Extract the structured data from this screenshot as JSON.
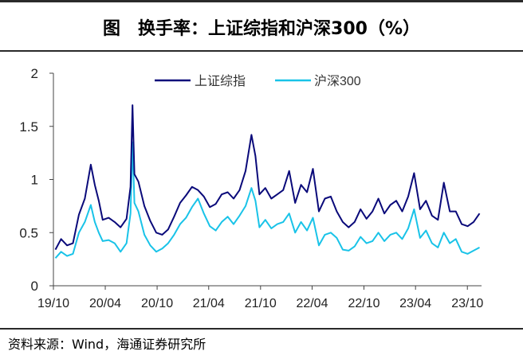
{
  "header": {
    "figure_label": "图",
    "title": "换手率：上证综指和沪深300（%）"
  },
  "source": "资料来源：Wind，海通证券研究所",
  "colors": {
    "shanghai": "#0a0a7a",
    "hs300": "#19c3e8",
    "axis": "#444444",
    "rule": "#2a2a2a"
  },
  "chart_data": {
    "type": "line",
    "title": "换手率：上证综指和沪深300（%）",
    "xlabel": "",
    "ylabel": "",
    "ylim": [
      0,
      2
    ],
    "yticks": [
      "0",
      "0.5",
      "1",
      "1.5",
      "2"
    ],
    "xticks": [
      "19/10",
      "20/04",
      "20/10",
      "21/04",
      "21/10",
      "22/04",
      "22/10",
      "23/04",
      "23/10"
    ],
    "grid": false,
    "legend_position": "top-center",
    "series": [
      {
        "name": "上证综指",
        "color": "#0a0a7a",
        "x": [
          "2019-10-08",
          "2019-10-28",
          "2019-11-18",
          "2019-12-09",
          "2019-12-30",
          "2020-01-20",
          "2020-02-10",
          "2020-02-24",
          "2020-03-09",
          "2020-03-23",
          "2020-04-13",
          "2020-05-04",
          "2020-05-25",
          "2020-06-15",
          "2020-06-29",
          "2020-07-06",
          "2020-07-13",
          "2020-07-27",
          "2020-08-17",
          "2020-09-07",
          "2020-09-28",
          "2020-10-19",
          "2020-11-09",
          "2020-11-30",
          "2020-12-21",
          "2021-01-11",
          "2021-02-01",
          "2021-02-22",
          "2021-03-15",
          "2021-04-05",
          "2021-04-26",
          "2021-05-17",
          "2021-06-07",
          "2021-06-28",
          "2021-07-19",
          "2021-08-09",
          "2021-08-30",
          "2021-09-13",
          "2021-09-27",
          "2021-10-18",
          "2021-11-08",
          "2021-11-29",
          "2021-12-20",
          "2022-01-10",
          "2022-01-31",
          "2022-02-21",
          "2022-03-14",
          "2022-04-04",
          "2022-04-25",
          "2022-05-16",
          "2022-06-06",
          "2022-06-27",
          "2022-07-18",
          "2022-08-08",
          "2022-08-29",
          "2022-09-19",
          "2022-10-10",
          "2022-10-31",
          "2022-11-21",
          "2022-12-12",
          "2023-01-02",
          "2023-01-23",
          "2023-02-13",
          "2023-03-06",
          "2023-03-27",
          "2023-04-17",
          "2023-05-08",
          "2023-05-29",
          "2023-06-19",
          "2023-07-10",
          "2023-07-31",
          "2023-08-21",
          "2023-09-11",
          "2023-10-02",
          "2023-10-23",
          "2023-11-13"
        ],
        "values": [
          0.34,
          0.44,
          0.38,
          0.4,
          0.67,
          0.82,
          1.14,
          0.95,
          0.8,
          0.62,
          0.64,
          0.6,
          0.55,
          0.63,
          0.93,
          1.7,
          1.05,
          0.98,
          0.75,
          0.61,
          0.5,
          0.48,
          0.53,
          0.65,
          0.78,
          0.85,
          0.93,
          0.9,
          0.84,
          0.74,
          0.77,
          0.86,
          0.88,
          0.82,
          0.9,
          1.08,
          1.42,
          1.22,
          0.86,
          0.92,
          0.82,
          0.86,
          0.9,
          1.08,
          0.78,
          0.95,
          0.88,
          1.1,
          0.7,
          0.82,
          0.84,
          0.7,
          0.6,
          0.55,
          0.6,
          0.72,
          0.63,
          0.7,
          0.82,
          0.68,
          0.76,
          0.8,
          0.7,
          0.84,
          1.06,
          0.72,
          0.8,
          0.66,
          0.62,
          0.97,
          0.7,
          0.7,
          0.58,
          0.56,
          0.6,
          0.68
        ]
      },
      {
        "name": "沪深300",
        "color": "#19c3e8",
        "x": [
          "2019-10-08",
          "2019-10-28",
          "2019-11-18",
          "2019-12-09",
          "2019-12-30",
          "2020-01-20",
          "2020-02-10",
          "2020-02-24",
          "2020-03-09",
          "2020-03-23",
          "2020-04-13",
          "2020-05-04",
          "2020-05-25",
          "2020-06-15",
          "2020-06-29",
          "2020-07-06",
          "2020-07-13",
          "2020-07-27",
          "2020-08-17",
          "2020-09-07",
          "2020-09-28",
          "2020-10-19",
          "2020-11-09",
          "2020-11-30",
          "2020-12-21",
          "2021-01-11",
          "2021-02-01",
          "2021-02-22",
          "2021-03-15",
          "2021-04-05",
          "2021-04-26",
          "2021-05-17",
          "2021-06-07",
          "2021-06-28",
          "2021-07-19",
          "2021-08-09",
          "2021-08-30",
          "2021-09-13",
          "2021-09-27",
          "2021-10-18",
          "2021-11-08",
          "2021-11-29",
          "2021-12-20",
          "2022-01-10",
          "2022-01-31",
          "2022-02-21",
          "2022-03-14",
          "2022-04-04",
          "2022-04-25",
          "2022-05-16",
          "2022-06-06",
          "2022-06-27",
          "2022-07-18",
          "2022-08-08",
          "2022-08-29",
          "2022-09-19",
          "2022-10-10",
          "2022-10-31",
          "2022-11-21",
          "2022-12-12",
          "2023-01-02",
          "2023-01-23",
          "2023-02-13",
          "2023-03-06",
          "2023-03-27",
          "2023-04-17",
          "2023-05-08",
          "2023-05-29",
          "2023-06-19",
          "2023-07-10",
          "2023-07-31",
          "2023-08-21",
          "2023-09-11",
          "2023-10-02",
          "2023-10-23",
          "2023-11-13"
        ],
        "values": [
          0.26,
          0.32,
          0.28,
          0.3,
          0.5,
          0.6,
          0.76,
          0.6,
          0.5,
          0.42,
          0.43,
          0.4,
          0.32,
          0.4,
          0.68,
          1.35,
          0.78,
          0.7,
          0.48,
          0.38,
          0.32,
          0.35,
          0.4,
          0.48,
          0.58,
          0.64,
          0.74,
          0.82,
          0.68,
          0.56,
          0.52,
          0.6,
          0.65,
          0.58,
          0.66,
          0.75,
          0.92,
          0.8,
          0.55,
          0.62,
          0.54,
          0.58,
          0.6,
          0.68,
          0.5,
          0.6,
          0.52,
          0.64,
          0.38,
          0.48,
          0.5,
          0.45,
          0.34,
          0.33,
          0.37,
          0.46,
          0.4,
          0.42,
          0.5,
          0.42,
          0.48,
          0.5,
          0.44,
          0.54,
          0.72,
          0.45,
          0.52,
          0.4,
          0.36,
          0.5,
          0.4,
          0.44,
          0.32,
          0.3,
          0.33,
          0.36
        ]
      }
    ]
  }
}
